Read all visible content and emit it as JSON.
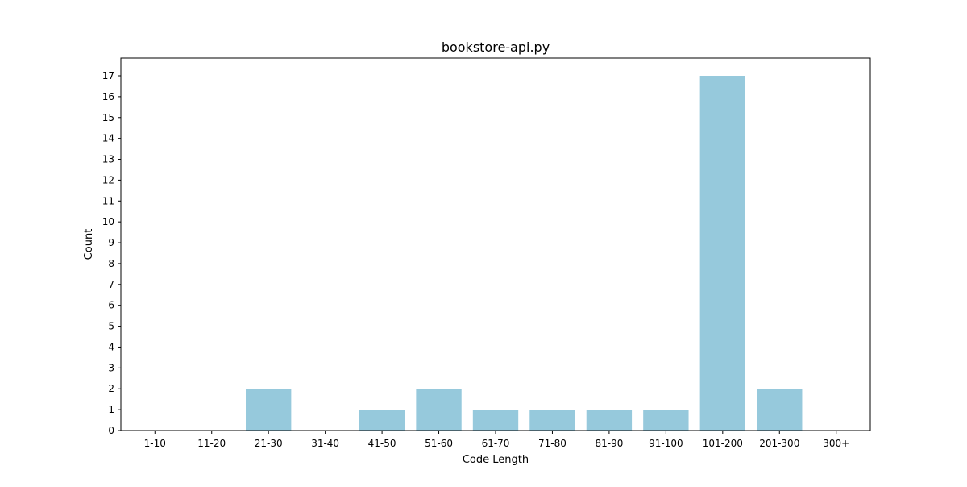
{
  "chart_data": {
    "type": "bar",
    "title": "bookstore-api.py",
    "xlabel": "Code Length",
    "ylabel": "Count",
    "categories": [
      "1-10",
      "11-20",
      "21-30",
      "31-40",
      "41-50",
      "51-60",
      "61-70",
      "71-80",
      "81-90",
      "91-100",
      "101-200",
      "201-300",
      "300+"
    ],
    "values": [
      0,
      0,
      2,
      0,
      1,
      2,
      1,
      1,
      1,
      1,
      17,
      2,
      0
    ],
    "ylim": [
      0,
      17.85
    ],
    "yticks": [
      0,
      1,
      2,
      3,
      4,
      5,
      6,
      7,
      8,
      9,
      10,
      11,
      12,
      13,
      14,
      15,
      16,
      17
    ],
    "bar_color": "#96c9dc",
    "grid": false,
    "legend": "none"
  }
}
